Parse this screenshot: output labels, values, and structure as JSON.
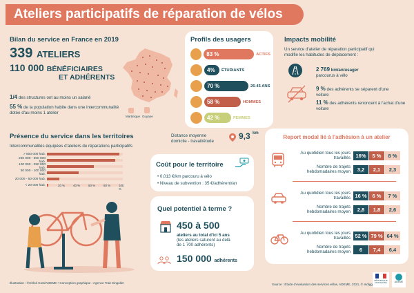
{
  "title": "Ateliers participatifs de réparation de vélos",
  "bilan": {
    "heading": "Bilan du service en France en 2019",
    "ateliers_num": "339",
    "ateliers_label": "ATELIERS",
    "benef_num": "110 000",
    "benef_label1": "BÉNÉFICIAIRES",
    "benef_label2": "ET ADHÉRENTS",
    "stat1_num": "1/4",
    "stat1_text": "des structures ont au moins un salarié",
    "stat2_num": "55 %",
    "stat2_text": "de la population habite dans une intercommunalité dotée d'au moins 1 atelier",
    "map_label_1": "Martinique",
    "map_label_2": "Guyane"
  },
  "profils": {
    "heading": "Profils des usagers",
    "rows": [
      {
        "value": "83 %",
        "label": "ACTIFS",
        "fraction": 0.83,
        "color": "#e0785f"
      },
      {
        "value": "4%",
        "label": "ÉTUDIANTS",
        "fraction": 0.04,
        "color": "#1f4f5c"
      },
      {
        "value": "70 %",
        "label": "26-45 ANS",
        "fraction": 0.7,
        "color": "#1f4f5c"
      },
      {
        "value": "58 %",
        "label": "HOMMES",
        "fraction": 0.58,
        "color": "#c25f4a"
      },
      {
        "value": "42 %",
        "label": "FEMMES",
        "fraction": 0.42,
        "color": "#c8cf7a"
      }
    ]
  },
  "impacts": {
    "heading": "Impacts mobilité",
    "intro": "Un service d'atelier de réparation participatif qui modifie les habitudes de déplacement :",
    "km_value": "2 769",
    "km_unit": "km/an/usager",
    "km_text": "parcourus à vélo",
    "sep_value": "9 %",
    "sep_text": "des adhérents se séparent d'une voiture",
    "ren_value": "11 %",
    "ren_text": "des adhérents renoncent à l'achat d'une voiture"
  },
  "presence": {
    "heading": "Présence du service dans les territoires",
    "subheading": "Intercommunalités équipées d'ateliers de réparations participatifs",
    "bars": [
      {
        "label": "> 500 000 hab.",
        "fraction": 0.95
      },
      {
        "label": "250 000 - 500 000 hab.",
        "fraction": 0.9
      },
      {
        "label": "100 000 - 250 000 hab.",
        "fraction": 0.62
      },
      {
        "label": "50 000 - 100 000 hab.",
        "fraction": 0.42
      },
      {
        "label": "20 000 - 50 000 hab.",
        "fraction": 0.16
      },
      {
        "label": "< 20 000 hab.",
        "fraction": 0.02
      }
    ],
    "ticks": [
      "20 %",
      "40 %",
      "60 %",
      "80 %",
      "100 %"
    ]
  },
  "distance": {
    "label1": "Distance moyenne",
    "label2": "domicile - travail/étude",
    "value": "9,3",
    "unit": "km"
  },
  "cout": {
    "heading": "Coût pour le territoire",
    "line1": "• 0,013 €/km parcouru à vélo",
    "line2": "• Niveau de subvention : 35 €/adhérent/an"
  },
  "potentiel": {
    "heading": "Quel potentiel à terme ?",
    "range": "450 à 500",
    "range_text1": "ateliers au total d'ici 5 ans",
    "range_text2": "(les ateliers saturent au delà",
    "range_text3": "de 1 700 adhérents)",
    "adherents_num": "150 000",
    "adherents_label": "adhérents"
  },
  "report": {
    "heading": "Report modal lié à l'adhésion à un atelier",
    "col_heads": [
      "Avant",
      "Pendant",
      "Après"
    ],
    "row_label_1": "Au quotidien tous les jours travaillés",
    "row_label_2": "Nombre de trajets hebdomadaires moyen",
    "blocks": [
      {
        "mode": "bus",
        "pct": [
          "16%",
          "5 %",
          "8 %"
        ],
        "trips": [
          "3,2",
          "2,1",
          "2,3"
        ]
      },
      {
        "mode": "car",
        "pct": [
          "16 %",
          "6 %",
          "7 %"
        ],
        "trips": [
          "2,8",
          "1,8",
          "2,6"
        ]
      },
      {
        "mode": "bike",
        "pct": [
          "52 %",
          "79 %",
          "64 %"
        ],
        "trips": [
          "6",
          "7,4",
          "6,4"
        ]
      }
    ]
  },
  "footer": {
    "credits": "Illustration : ©Chloé Kost/ADEME • Conception graphique : Agence Trait Singulier",
    "source": "Source : Étude d'évaluation des services vélos, ADEME, 2021, © Indiggo",
    "rf_logo": "RÉPUBLIQUE FRANÇAISE",
    "ademe_logo": "ADEME"
  }
}
